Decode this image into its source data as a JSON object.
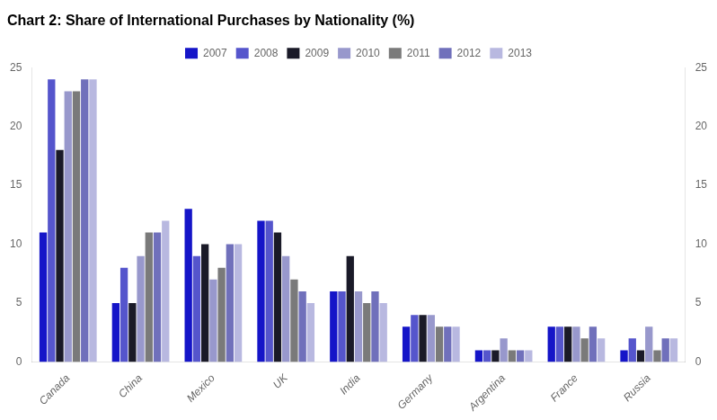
{
  "chart_data": {
    "type": "bar",
    "title": "Chart 2: Share of International Purchases by Nationality (%)",
    "categories": [
      "Canada",
      "China",
      "Mexico",
      "UK",
      "India",
      "Germany",
      "Argentina",
      "France",
      "Russia"
    ],
    "series": [
      {
        "name": "2007",
        "color": "#1515c8",
        "values": [
          11,
          5,
          13,
          12,
          6,
          3,
          1,
          3,
          1
        ]
      },
      {
        "name": "2008",
        "color": "#5555cc",
        "values": [
          24,
          8,
          9,
          12,
          6,
          4,
          1,
          3,
          2
        ]
      },
      {
        "name": "2009",
        "color": "#1a1a28",
        "values": [
          18,
          5,
          10,
          11,
          9,
          4,
          1,
          3,
          1
        ]
      },
      {
        "name": "2010",
        "color": "#9898cc",
        "values": [
          23,
          9,
          7,
          9,
          6,
          4,
          2,
          3,
          3
        ]
      },
      {
        "name": "2011",
        "color": "#7a7a7a",
        "values": [
          23,
          11,
          8,
          7,
          5,
          3,
          1,
          2,
          1
        ]
      },
      {
        "name": "2012",
        "color": "#7070bb",
        "values": [
          24,
          11,
          10,
          6,
          6,
          3,
          1,
          3,
          2
        ]
      },
      {
        "name": "2013",
        "color": "#b8b8e0",
        "values": [
          24,
          12,
          10,
          5,
          5,
          3,
          1,
          2,
          2
        ]
      }
    ],
    "ylim": [
      0,
      25
    ],
    "yticks": [
      0,
      5,
      10,
      15,
      20,
      25
    ],
    "y2lim": [
      0,
      25
    ],
    "y2ticks": [
      0,
      5,
      10,
      15,
      20,
      25
    ],
    "grid": false,
    "legend": "top"
  }
}
